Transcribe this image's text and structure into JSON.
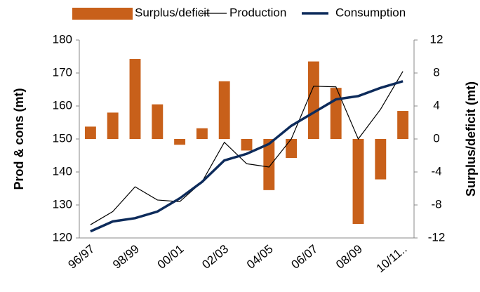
{
  "chart_data": {
    "type": "bar_line",
    "categories": [
      "96/97",
      null,
      "98/99",
      null,
      "00/01",
      null,
      "02/03",
      null,
      "04/05",
      null,
      "06/07",
      null,
      "08/09",
      null,
      "10/11.."
    ],
    "series": [
      {
        "name": "Surplus/deficit",
        "type": "bar",
        "axis": "y2",
        "color": "#c8601a",
        "values": [
          1.5,
          3.2,
          9.7,
          4.2,
          -0.7,
          1.3,
          7.0,
          -1.4,
          -6.2,
          -2.3,
          9.4,
          6.2,
          -10.3,
          -4.9,
          3.4
        ]
      },
      {
        "name": "Production",
        "type": "line",
        "color": "#000000",
        "width": 1.2,
        "values": [
          124,
          128,
          135.5,
          131.5,
          131,
          137,
          149,
          142.5,
          141.5,
          150,
          166,
          165.8,
          150,
          159,
          170.5
        ]
      },
      {
        "name": "Consumption",
        "type": "line",
        "color": "#0d2b5b",
        "width": 3.5,
        "values": [
          122,
          125,
          126,
          128,
          132,
          137,
          143.5,
          145.5,
          148.5,
          154,
          158,
          162,
          163,
          165.5,
          167.5
        ]
      }
    ],
    "ylabel": "Prod & cons (mt)",
    "y2label": "Surplus/deficit (mt)",
    "ylim": [
      120,
      180
    ],
    "yticks": [
      120,
      130,
      140,
      150,
      160,
      170,
      180
    ],
    "y2lim": [
      -12,
      12
    ],
    "y2ticks": [
      -12,
      -8,
      -4,
      0,
      4,
      8,
      12
    ]
  }
}
